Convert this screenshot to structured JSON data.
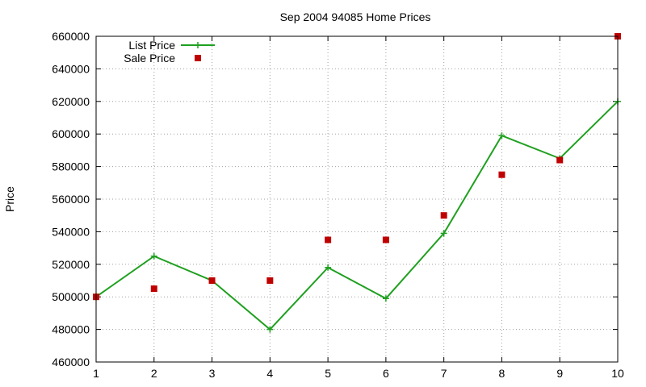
{
  "chart_data": {
    "type": "line",
    "title": "Sep 2004 94085 Home Prices",
    "xlabel": "",
    "ylabel": "Price",
    "x": [
      1,
      2,
      3,
      4,
      5,
      6,
      7,
      8,
      9,
      10
    ],
    "xlim": [
      1,
      10
    ],
    "ylim": [
      460000,
      660000
    ],
    "xticks": [
      1,
      2,
      3,
      4,
      5,
      6,
      7,
      8,
      9,
      10
    ],
    "yticks": [
      460000,
      480000,
      500000,
      520000,
      540000,
      560000,
      580000,
      600000,
      620000,
      640000,
      660000
    ],
    "grid": true,
    "legend_position": "top-left",
    "series": [
      {
        "name": "List Price",
        "style": "line-with-plus-markers",
        "color": "#1fa01f",
        "values": [
          500000,
          525000,
          510000,
          480000,
          518000,
          499000,
          539000,
          599000,
          585000,
          620000
        ]
      },
      {
        "name": "Sale Price",
        "style": "square-markers",
        "color": "#c00000",
        "values": [
          500000,
          505000,
          510000,
          510000,
          535000,
          535000,
          550000,
          575000,
          584000,
          660000
        ]
      }
    ]
  }
}
